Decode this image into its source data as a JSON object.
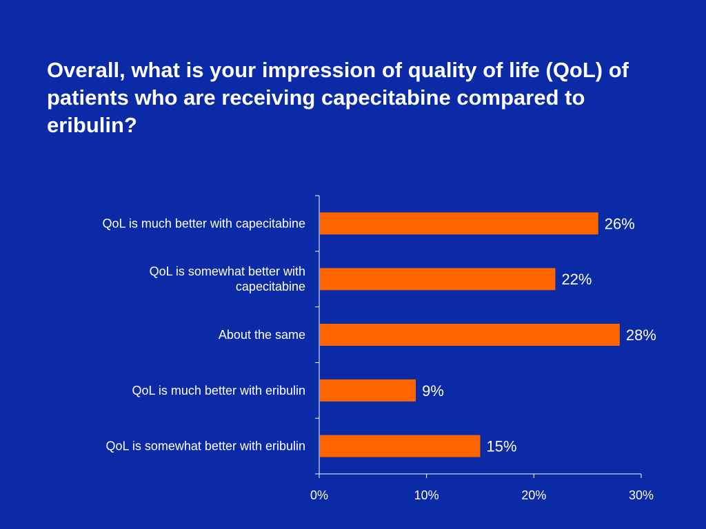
{
  "slide": {
    "title": "Overall, what is your impression of quality of life (QoL) of patients who are receiving capecitabine compared to eribulin?"
  },
  "colors": {
    "background": "#0a2aa6",
    "bar": "#ff6600",
    "text": "#ffffff",
    "axis": "#ffffff"
  },
  "chart_data": {
    "type": "bar",
    "orientation": "horizontal",
    "title": "",
    "xlabel": "",
    "ylabel": "",
    "categories": [
      [
        "QoL is much better with capecitabine"
      ],
      [
        "QoL is somewhat better with",
        "capecitabine"
      ],
      [
        "About the same"
      ],
      [
        "QoL is much better with eribulin"
      ],
      [
        "QoL is somewhat better with eribulin"
      ]
    ],
    "values": [
      26,
      22,
      28,
      9,
      15
    ],
    "data_labels": [
      "26%",
      "22%",
      "28%",
      "9%",
      "15%"
    ],
    "xlim": [
      0,
      30
    ],
    "x_ticks": [
      0,
      10,
      20,
      30
    ],
    "x_tick_labels": [
      "0%",
      "10%",
      "20%",
      "30%"
    ],
    "grid": false,
    "legend": "none"
  }
}
